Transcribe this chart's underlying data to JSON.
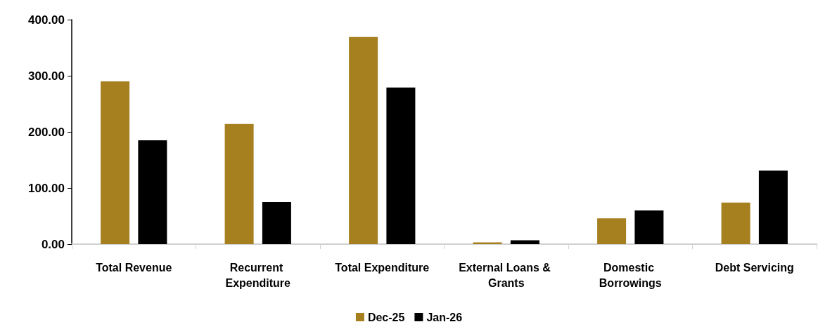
{
  "chart_data": {
    "type": "bar",
    "categories": [
      "Total Revenue",
      "Recurrent Expenditure",
      "Total Expenditure",
      "External Loans & Grants",
      "Domestic Borrowings",
      "Debt Servicing"
    ],
    "series": [
      {
        "name": "Dec-25",
        "color": "#a67f1e",
        "values": [
          290,
          214,
          369,
          3,
          46,
          74
        ]
      },
      {
        "name": "Jan-26",
        "color": "#000000",
        "values": [
          185,
          75,
          279,
          7,
          60,
          131
        ]
      }
    ],
    "ylim": [
      0,
      400
    ],
    "yticks": [
      {
        "value": 0,
        "label": "0.00"
      },
      {
        "value": 100,
        "label": "100.00"
      },
      {
        "value": 200,
        "label": "200.00"
      },
      {
        "value": 300,
        "label": "300.00"
      },
      {
        "value": 400,
        "label": "400.00"
      }
    ],
    "grid": false,
    "legend": "bottom"
  }
}
